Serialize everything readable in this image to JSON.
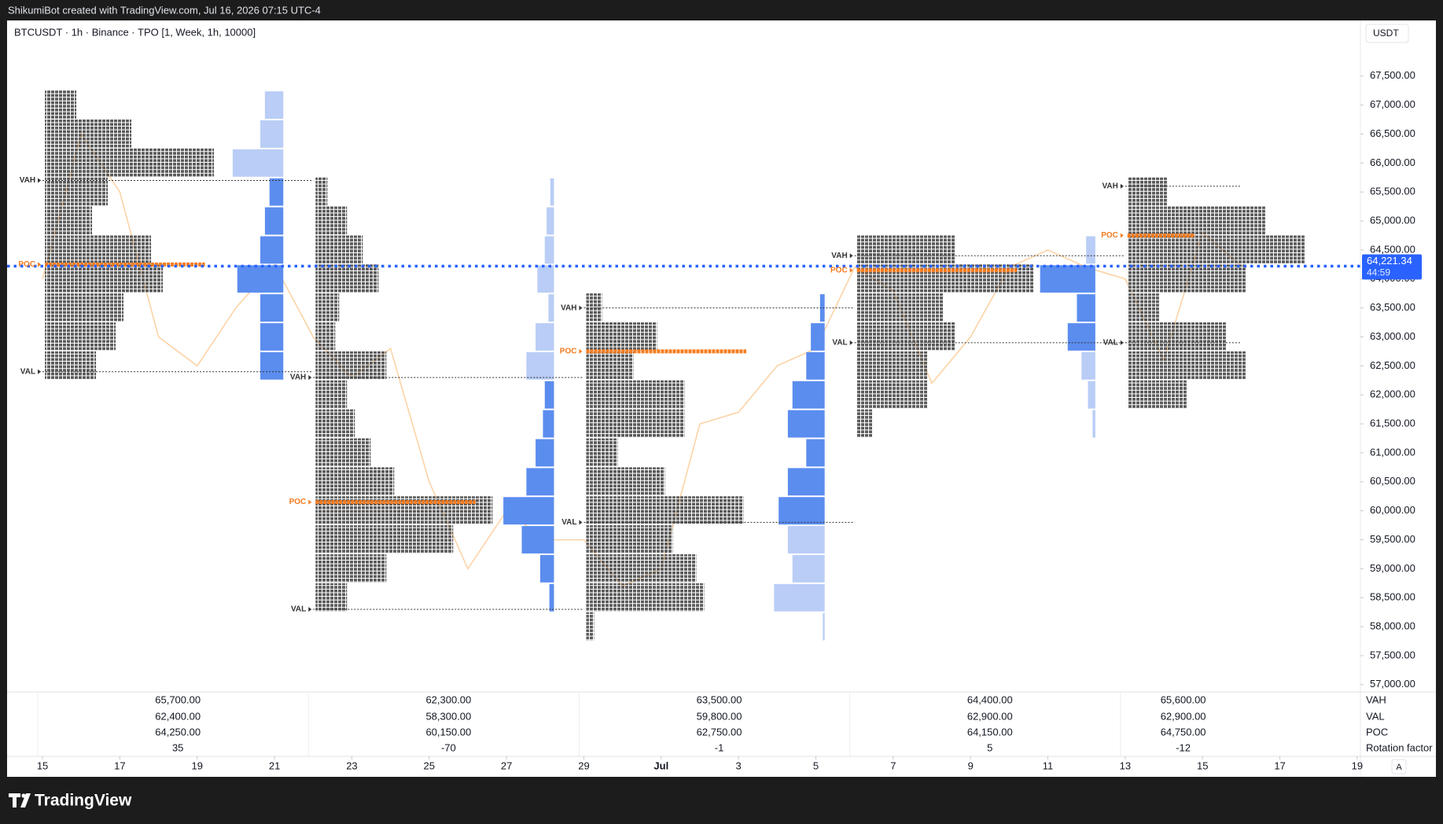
{
  "header": {
    "text": "ShikumiBot created with TradingView.com, Jul 16, 2026 07:15 UTC-4"
  },
  "footer": {
    "brand": "TradingView"
  },
  "ui": {
    "auto_button": "A"
  },
  "chart_data": {
    "type": "tpo",
    "title": "BTCUSDT · 1h · Binance · TPO [1, Week, 1h, 10000]",
    "currency": "USDT",
    "xlim": [
      "2026-06-14T02:00:00Z",
      "2026-07-19T02:00:00Z"
    ],
    "ylim": [
      56875,
      68460
    ],
    "yticks": [
      {
        "value": 57000,
        "label": "57,000.00"
      },
      {
        "value": 57500,
        "label": "57,500.00"
      },
      {
        "value": 58000,
        "label": "58,000.00"
      },
      {
        "value": 58500,
        "label": "58,500.00"
      },
      {
        "value": 59000,
        "label": "59,000.00"
      },
      {
        "value": 59500,
        "label": "59,500.00"
      },
      {
        "value": 60000,
        "label": "60,000.00"
      },
      {
        "value": 60500,
        "label": "60,500.00"
      },
      {
        "value": 61000,
        "label": "61,000.00"
      },
      {
        "value": 61500,
        "label": "61,500.00"
      },
      {
        "value": 62000,
        "label": "62,000.00"
      },
      {
        "value": 62500,
        "label": "62,500.00"
      },
      {
        "value": 63000,
        "label": "63,000.00"
      },
      {
        "value": 63500,
        "label": "63,500.00"
      },
      {
        "value": 64000,
        "label": "64,000.00"
      },
      {
        "value": 64500,
        "label": "64,500.00"
      },
      {
        "value": 65000,
        "label": "65,000.00"
      },
      {
        "value": 65500,
        "label": "65,500.00"
      },
      {
        "value": 66000,
        "label": "66,000.00"
      },
      {
        "value": 66500,
        "label": "66,500.00"
      },
      {
        "value": 67000,
        "label": "67,000.00"
      },
      {
        "value": 67500,
        "label": "67,500.00"
      }
    ],
    "xticks": [
      {
        "value": "2026-06-15",
        "label": "15"
      },
      {
        "value": "2026-06-17",
        "label": "17"
      },
      {
        "value": "2026-06-19",
        "label": "19"
      },
      {
        "value": "2026-06-21",
        "label": "21"
      },
      {
        "value": "2026-06-23",
        "label": "23"
      },
      {
        "value": "2026-06-25",
        "label": "25"
      },
      {
        "value": "2026-06-27",
        "label": "27"
      },
      {
        "value": "2026-06-29",
        "label": "29"
      },
      {
        "value": "2026-07-01",
        "label": "Jul"
      },
      {
        "value": "2026-07-03",
        "label": "3"
      },
      {
        "value": "2026-07-05",
        "label": "5"
      },
      {
        "value": "2026-07-07",
        "label": "7"
      },
      {
        "value": "2026-07-09",
        "label": "9"
      },
      {
        "value": "2026-07-11",
        "label": "11"
      },
      {
        "value": "2026-07-13",
        "label": "13"
      },
      {
        "value": "2026-07-15",
        "label": "15"
      },
      {
        "value": "2026-07-17",
        "label": "17"
      },
      {
        "value": "2026-07-19",
        "label": "19"
      }
    ],
    "price_line": {
      "color": "#fcd3a6",
      "x": [
        "2026-06-15",
        "2026-06-16",
        "2026-06-17",
        "2026-06-18",
        "2026-06-19",
        "2026-06-20",
        "2026-06-21",
        "2026-06-22",
        "2026-06-23",
        "2026-06-24",
        "2026-06-25",
        "2026-06-26",
        "2026-06-27",
        "2026-06-28",
        "2026-06-29",
        "2026-06-30",
        "2026-07-01",
        "2026-07-02",
        "2026-07-03",
        "2026-07-04",
        "2026-07-05",
        "2026-07-06",
        "2026-07-07",
        "2026-07-08",
        "2026-07-09",
        "2026-07-10",
        "2026-07-11",
        "2026-07-12",
        "2026-07-13",
        "2026-07-14",
        "2026-07-15",
        "2026-07-16"
      ],
      "values": [
        64000,
        66500,
        65500,
        63000,
        62500,
        63500,
        64250,
        63000,
        62300,
        62800,
        60500,
        59000,
        60000,
        59500,
        59500,
        58700,
        59000,
        61500,
        61700,
        62500,
        62800,
        64200,
        63800,
        62200,
        63000,
        64200,
        64500,
        64200,
        64000,
        62600,
        64800,
        64221.34
      ]
    },
    "current_price": {
      "value": 64221.34,
      "label": "64,221.34",
      "countdown": "44:59",
      "color": "#2962ff"
    },
    "marker_labels": [
      "VAH",
      "VAL",
      "POC"
    ],
    "table_labels": [
      "VAH",
      "VAL",
      "POC",
      "Rotation factor"
    ],
    "tpo_color": "#5a5a5a",
    "poc_color": "#f57c1f",
    "volume_color": "#5b8def",
    "volume_outside_color": "#b9cdf6",
    "line_color": "#333333",
    "sessions": [
      {
        "start": "2026-06-15",
        "vah": {
          "value": 65700,
          "label": "65,700.00"
        },
        "val": {
          "value": 62400,
          "label": "62,400.00"
        },
        "poc": {
          "value": 64250,
          "label": "64,250.00"
        },
        "rotation_factor": 35,
        "prices": [
          67000,
          66500,
          66000,
          65500,
          65000,
          64500,
          64000,
          63500,
          63000,
          62500
        ],
        "tpo_counts": [
          8,
          22,
          43,
          16,
          12,
          27,
          30,
          20,
          18,
          13
        ],
        "volume": [
          20,
          25,
          55,
          15,
          20,
          25,
          50,
          25,
          25,
          25
        ]
      },
      {
        "start": "2026-06-22",
        "vah": {
          "value": 62300,
          "label": "62,300.00"
        },
        "val": {
          "value": 58300,
          "label": "58,300.00"
        },
        "poc": {
          "value": 60150,
          "label": "60,150.00"
        },
        "rotation_factor": -70,
        "prices": [
          65500,
          65000,
          64500,
          64000,
          63500,
          63000,
          62500,
          62000,
          61500,
          61000,
          60500,
          60000,
          59500,
          59000,
          58500
        ],
        "tpo_counts": [
          3,
          8,
          12,
          16,
          6,
          5,
          18,
          8,
          10,
          14,
          20,
          45,
          35,
          18,
          8
        ],
        "volume": [
          4,
          8,
          10,
          18,
          6,
          20,
          30,
          10,
          12,
          20,
          30,
          55,
          35,
          15,
          5
        ]
      },
      {
        "start": "2026-06-29",
        "vah": {
          "value": 63500,
          "label": "63,500.00"
        },
        "val": {
          "value": 59800,
          "label": "59,800.00"
        },
        "poc": {
          "value": 62750,
          "label": "62,750.00"
        },
        "rotation_factor": -1,
        "prices": [
          63500,
          63000,
          62500,
          62000,
          61500,
          61000,
          60500,
          60000,
          59500,
          59000,
          58500,
          58000
        ],
        "tpo_counts": [
          4,
          18,
          12,
          25,
          25,
          8,
          20,
          40,
          22,
          28,
          30,
          2
        ],
        "volume": [
          5,
          15,
          20,
          35,
          40,
          20,
          40,
          50,
          40,
          35,
          55,
          2
        ]
      },
      {
        "start": "2026-07-06",
        "vah": {
          "value": 64400,
          "label": "64,400.00"
        },
        "val": {
          "value": 62900,
          "label": "62,900.00"
        },
        "poc": {
          "value": 64150,
          "label": "64,150.00"
        },
        "rotation_factor": 5,
        "prices": [
          64500,
          64000,
          63500,
          63000,
          62500,
          62000,
          61500
        ],
        "tpo_counts": [
          25,
          45,
          22,
          25,
          18,
          18,
          4
        ],
        "volume": [
          10,
          60,
          20,
          30,
          15,
          8,
          3
        ]
      },
      {
        "start": "2026-07-13",
        "vah": {
          "value": 65600,
          "label": "65,600.00"
        },
        "val": {
          "value": 62900,
          "label": "62,900.00"
        },
        "poc": {
          "value": 64750,
          "label": "64,750.00"
        },
        "rotation_factor": -12,
        "prices": [
          65500,
          65000,
          64500,
          64000,
          63500,
          63000,
          62500,
          62000
        ],
        "tpo_counts": [
          10,
          35,
          45,
          30,
          8,
          25,
          30,
          15
        ]
      }
    ]
  }
}
